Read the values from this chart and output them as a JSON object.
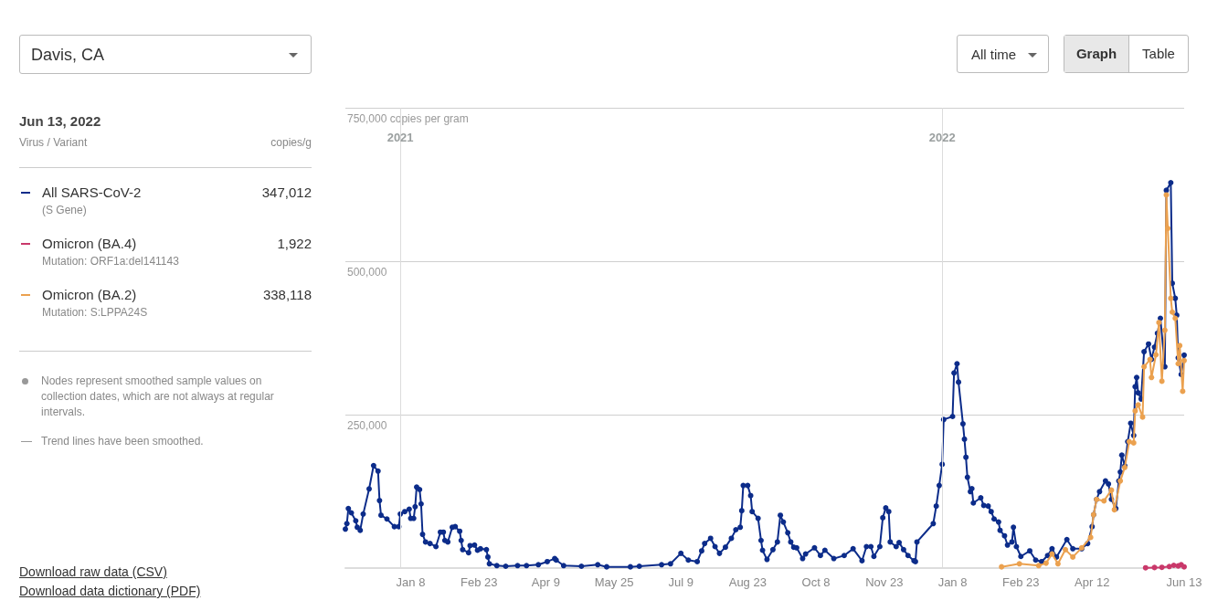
{
  "chart_data": {
    "type": "line",
    "title": "Davis, CA",
    "subtitle": "Jun 13, 2022",
    "legend_title": "Virus / Variant",
    "annotations": [
      "copies/g",
      "(S Gene)",
      "347,012",
      "Mutation: ORF1a:del141143",
      "1,922",
      "Mutation: S:LPPA24S",
      "338,118",
      "Nodes represent smoothed sample values on collection dates, which are not always at regular intervals.",
      "Trend lines have been smoothed.",
      "Download raw data (CSV)",
      "Download data dictionary (PDF)",
      "All time",
      "Graph",
      "Table"
    ],
    "series": [
      {
        "name": "All SARS-CoV-2",
        "color": "#0c2c8a",
        "x": [
          "2020-11-25",
          "2020-11-26",
          "2020-11-27",
          "2020-11-29",
          "2020-12-02",
          "2020-12-03",
          "2020-12-05",
          "2020-12-07",
          "2020-12-11",
          "2020-12-14",
          "2020-12-17",
          "2020-12-18",
          "2020-12-19",
          "2020-12-23",
          "2020-12-28",
          "2020-12-31",
          "2021-01-01",
          "2021-01-04",
          "2021-01-07",
          "2021-01-08",
          "2021-01-10",
          "2021-01-11",
          "2021-01-12",
          "2021-01-14",
          "2021-01-15",
          "2021-01-16",
          "2021-01-18",
          "2021-01-21",
          "2021-01-25",
          "2021-01-28",
          "2021-01-30",
          "2021-01-31",
          "2021-02-02",
          "2021-02-05",
          "2021-02-07",
          "2021-02-10",
          "2021-02-11",
          "2021-02-12",
          "2021-02-16",
          "2021-02-17",
          "2021-02-20",
          "2021-02-22",
          "2021-02-24",
          "2021-02-28",
          "2021-03-01",
          "2021-03-02",
          "2021-03-07",
          "2021-03-13",
          "2021-03-21",
          "2021-03-27",
          "2021-04-04",
          "2021-04-10",
          "2021-04-15",
          "2021-04-16",
          "2021-04-21",
          "2021-05-03",
          "2021-05-14",
          "2021-05-20",
          "2021-06-05",
          "2021-06-11",
          "2021-06-26",
          "2021-07-02",
          "2021-07-09",
          "2021-07-14",
          "2021-07-20",
          "2021-07-23",
          "2021-07-25",
          "2021-07-29",
          "2021-08-01",
          "2021-08-04",
          "2021-08-08",
          "2021-08-12",
          "2021-08-15",
          "2021-08-18",
          "2021-08-19",
          "2021-08-20",
          "2021-08-23",
          "2021-08-25",
          "2021-08-26",
          "2021-08-30",
          "2021-09-01",
          "2021-09-02",
          "2021-09-05",
          "2021-09-09",
          "2021-09-12",
          "2021-09-14",
          "2021-09-16",
          "2021-09-19",
          "2021-09-21",
          "2021-09-23",
          "2021-09-25",
          "2021-09-29",
          "2021-10-01",
          "2021-10-07",
          "2021-10-11",
          "2021-10-14",
          "2021-10-20",
          "2021-10-27",
          "2021-11-02",
          "2021-11-08",
          "2021-11-11",
          "2021-11-14",
          "2021-11-16",
          "2021-11-20",
          "2021-11-22",
          "2021-11-24",
          "2021-11-26",
          "2021-11-27",
          "2021-12-01",
          "2021-12-03",
          "2021-12-06",
          "2021-12-09",
          "2021-12-13",
          "2021-12-14",
          "2021-12-15",
          "2021-12-26",
          "2021-12-28",
          "2021-12-30",
          "2022-01-01",
          "2022-01-02",
          "2022-01-08",
          "2022-01-09",
          "2022-01-11",
          "2022-01-12",
          "2022-01-15",
          "2022-01-16",
          "2022-01-17",
          "2022-01-18",
          "2022-01-20",
          "2022-01-21",
          "2022-01-22",
          "2022-01-27",
          "2022-01-29",
          "2022-02-01",
          "2022-02-03",
          "2022-02-05",
          "2022-02-08",
          "2022-02-09",
          "2022-02-12",
          "2022-02-14",
          "2022-02-17",
          "2022-02-18",
          "2022-02-20",
          "2022-02-23",
          "2022-03-01",
          "2022-03-05",
          "2022-03-09",
          "2022-03-13",
          "2022-03-16",
          "2022-03-19",
          "2022-03-26",
          "2022-03-30",
          "2022-04-05",
          "2022-04-09",
          "2022-04-12",
          "2022-04-13",
          "2022-04-15",
          "2022-04-17",
          "2022-04-21",
          "2022-04-23",
          "2022-04-25",
          "2022-04-28",
          "2022-04-30",
          "2022-05-01",
          "2022-05-02",
          "2022-05-04",
          "2022-05-06",
          "2022-05-08",
          "2022-05-10",
          "2022-05-11",
          "2022-05-12",
          "2022-05-13",
          "2022-05-15",
          "2022-05-17",
          "2022-05-20",
          "2022-05-22",
          "2022-05-24",
          "2022-05-26",
          "2022-05-28",
          "2022-05-31",
          "2022-06-01",
          "2022-06-04",
          "2022-06-05",
          "2022-06-07",
          "2022-06-08",
          "2022-06-09",
          "2022-06-11",
          "2022-06-13"
        ],
        "values": [
          63500,
          72500,
          97000,
          90000,
          77000,
          66500,
          61500,
          88000,
          129000,
          167000,
          158000,
          110000,
          86000,
          80000,
          67500,
          67500,
          88000,
          92000,
          96000,
          81000,
          81000,
          100000,
          132000,
          128000,
          104500,
          55000,
          42500,
          40000,
          35000,
          58500,
          58500,
          45000,
          42500,
          66500,
          67500,
          60000,
          45000,
          30000,
          25000,
          36500,
          37500,
          29000,
          31500,
          30000,
          18000,
          7000,
          4000,
          3000,
          4000,
          4000,
          5500,
          10500,
          15500,
          13000,
          4000,
          3000,
          5500,
          2000,
          2000,
          3000,
          5500,
          7000,
          24000,
          13000,
          10500,
          28000,
          40000,
          48500,
          35000,
          24000,
          34000,
          48500,
          62500,
          66500,
          93500,
          134500,
          134500,
          118000,
          92000,
          81000,
          45000,
          29000,
          14000,
          30000,
          42500,
          86000,
          75000,
          57500,
          42500,
          34000,
          33000,
          15500,
          23000,
          33000,
          20500,
          29000,
          15500,
          20500,
          31500,
          12000,
          35000,
          35000,
          19000,
          35000,
          82000,
          98000,
          92000,
          42500,
          35000,
          41500,
          30000,
          20500,
          12000,
          10500,
          42500,
          72500,
          101000,
          134500,
          169000,
          242000,
          247000,
          318000,
          333000,
          303000,
          235000,
          210000,
          180500,
          148000,
          124500,
          129500,
          106000,
          114500,
          102000,
          101000,
          92000,
          80000,
          75000,
          61500,
          52500,
          37500,
          42500,
          66500,
          35000,
          19000,
          28000,
          13000,
          10500,
          20500,
          31500,
          18000,
          46500,
          31500,
          31500,
          40000,
          67500,
          87000,
          112000,
          124500,
          142000,
          137000,
          112000,
          97000,
          142000,
          156500,
          184000,
          166500,
          206000,
          236000,
          216000,
          295500,
          310500,
          285500,
          275500,
          352500,
          365000,
          340000,
          360000,
          382500,
          407000,
          328000,
          615500,
          628000,
          464000,
          439500,
          412000,
          342500,
          315500,
          347012
        ]
      },
      {
        "name": "Omicron (BA.4)",
        "color": "#c9386a",
        "x": [
          "2022-05-18",
          "2022-05-24",
          "2022-05-29",
          "2022-06-03",
          "2022-06-06",
          "2022-06-09",
          "2022-06-11",
          "2022-06-13"
        ],
        "values": [
          500,
          900,
          1200,
          2500,
          4500,
          3500,
          5500,
          1922
        ]
      },
      {
        "name": "Omicron (BA.2)",
        "color": "#eba14f",
        "x": [
          "2022-02-10",
          "2022-02-22",
          "2022-03-07",
          "2022-03-12",
          "2022-03-16",
          "2022-03-20",
          "2022-03-25",
          "2022-03-30",
          "2022-04-05",
          "2022-04-11",
          "2022-04-13",
          "2022-04-15",
          "2022-04-20",
          "2022-04-25",
          "2022-04-27",
          "2022-05-01",
          "2022-05-04",
          "2022-05-07",
          "2022-05-10",
          "2022-05-11",
          "2022-05-13",
          "2022-05-16",
          "2022-05-17",
          "2022-05-21",
          "2022-05-22",
          "2022-05-25",
          "2022-05-27",
          "2022-05-29",
          "2022-05-31",
          "2022-06-01",
          "2022-06-02",
          "2022-06-04",
          "2022-06-05",
          "2022-06-07",
          "2022-06-09",
          "2022-06-10",
          "2022-06-12",
          "2022-06-13"
        ],
        "values": [
          2000,
          7000,
          4000,
          8000,
          23000,
          7000,
          30000,
          18000,
          33000,
          50000,
          87000,
          112000,
          109500,
          127000,
          95000,
          142000,
          164000,
          206000,
          204000,
          256000,
          266000,
          246000,
          328000,
          340000,
          310500,
          347500,
          400000,
          304500,
          387500,
          608000,
          553500,
          439500,
          417000,
          407000,
          333000,
          362500,
          288000,
          338118
        ]
      }
    ],
    "xlim": [
      "2020-11-25",
      "2022-06-13"
    ],
    "xticks": [
      {
        "value": "2021-01-08",
        "label": "Jan 8"
      },
      {
        "value": "2021-02-23",
        "label": "Feb 23"
      },
      {
        "value": "2021-04-09",
        "label": "Apr 9"
      },
      {
        "value": "2021-05-25",
        "label": "May 25"
      },
      {
        "value": "2021-07-09",
        "label": "Jul 9"
      },
      {
        "value": "2021-08-23",
        "label": "Aug 23"
      },
      {
        "value": "2021-10-08",
        "label": "Oct 8"
      },
      {
        "value": "2021-11-23",
        "label": "Nov 23"
      },
      {
        "value": "2022-01-08",
        "label": "Jan 8"
      },
      {
        "value": "2022-02-23",
        "label": "Feb 23"
      },
      {
        "value": "2022-04-12",
        "label": "Apr 12"
      },
      {
        "value": "2022-06-13",
        "label": "Jun 13"
      }
    ],
    "ylim": [
      0,
      750000
    ],
    "yticks": [
      {
        "value": 0,
        "label": null
      },
      {
        "value": 250000,
        "label": "250,000"
      },
      {
        "value": 500000,
        "label": "500,000"
      },
      {
        "value": 750000,
        "label": "750,000 copies per gram"
      }
    ],
    "ref_lines": [
      {
        "axis": "x",
        "value": "2021-01-01",
        "label": "2021"
      },
      {
        "axis": "x",
        "value": "2022-01-01",
        "label": "2022"
      }
    ],
    "grid": "y",
    "legend": "left",
    "marker": "circle",
    "line_style": "solid"
  }
}
